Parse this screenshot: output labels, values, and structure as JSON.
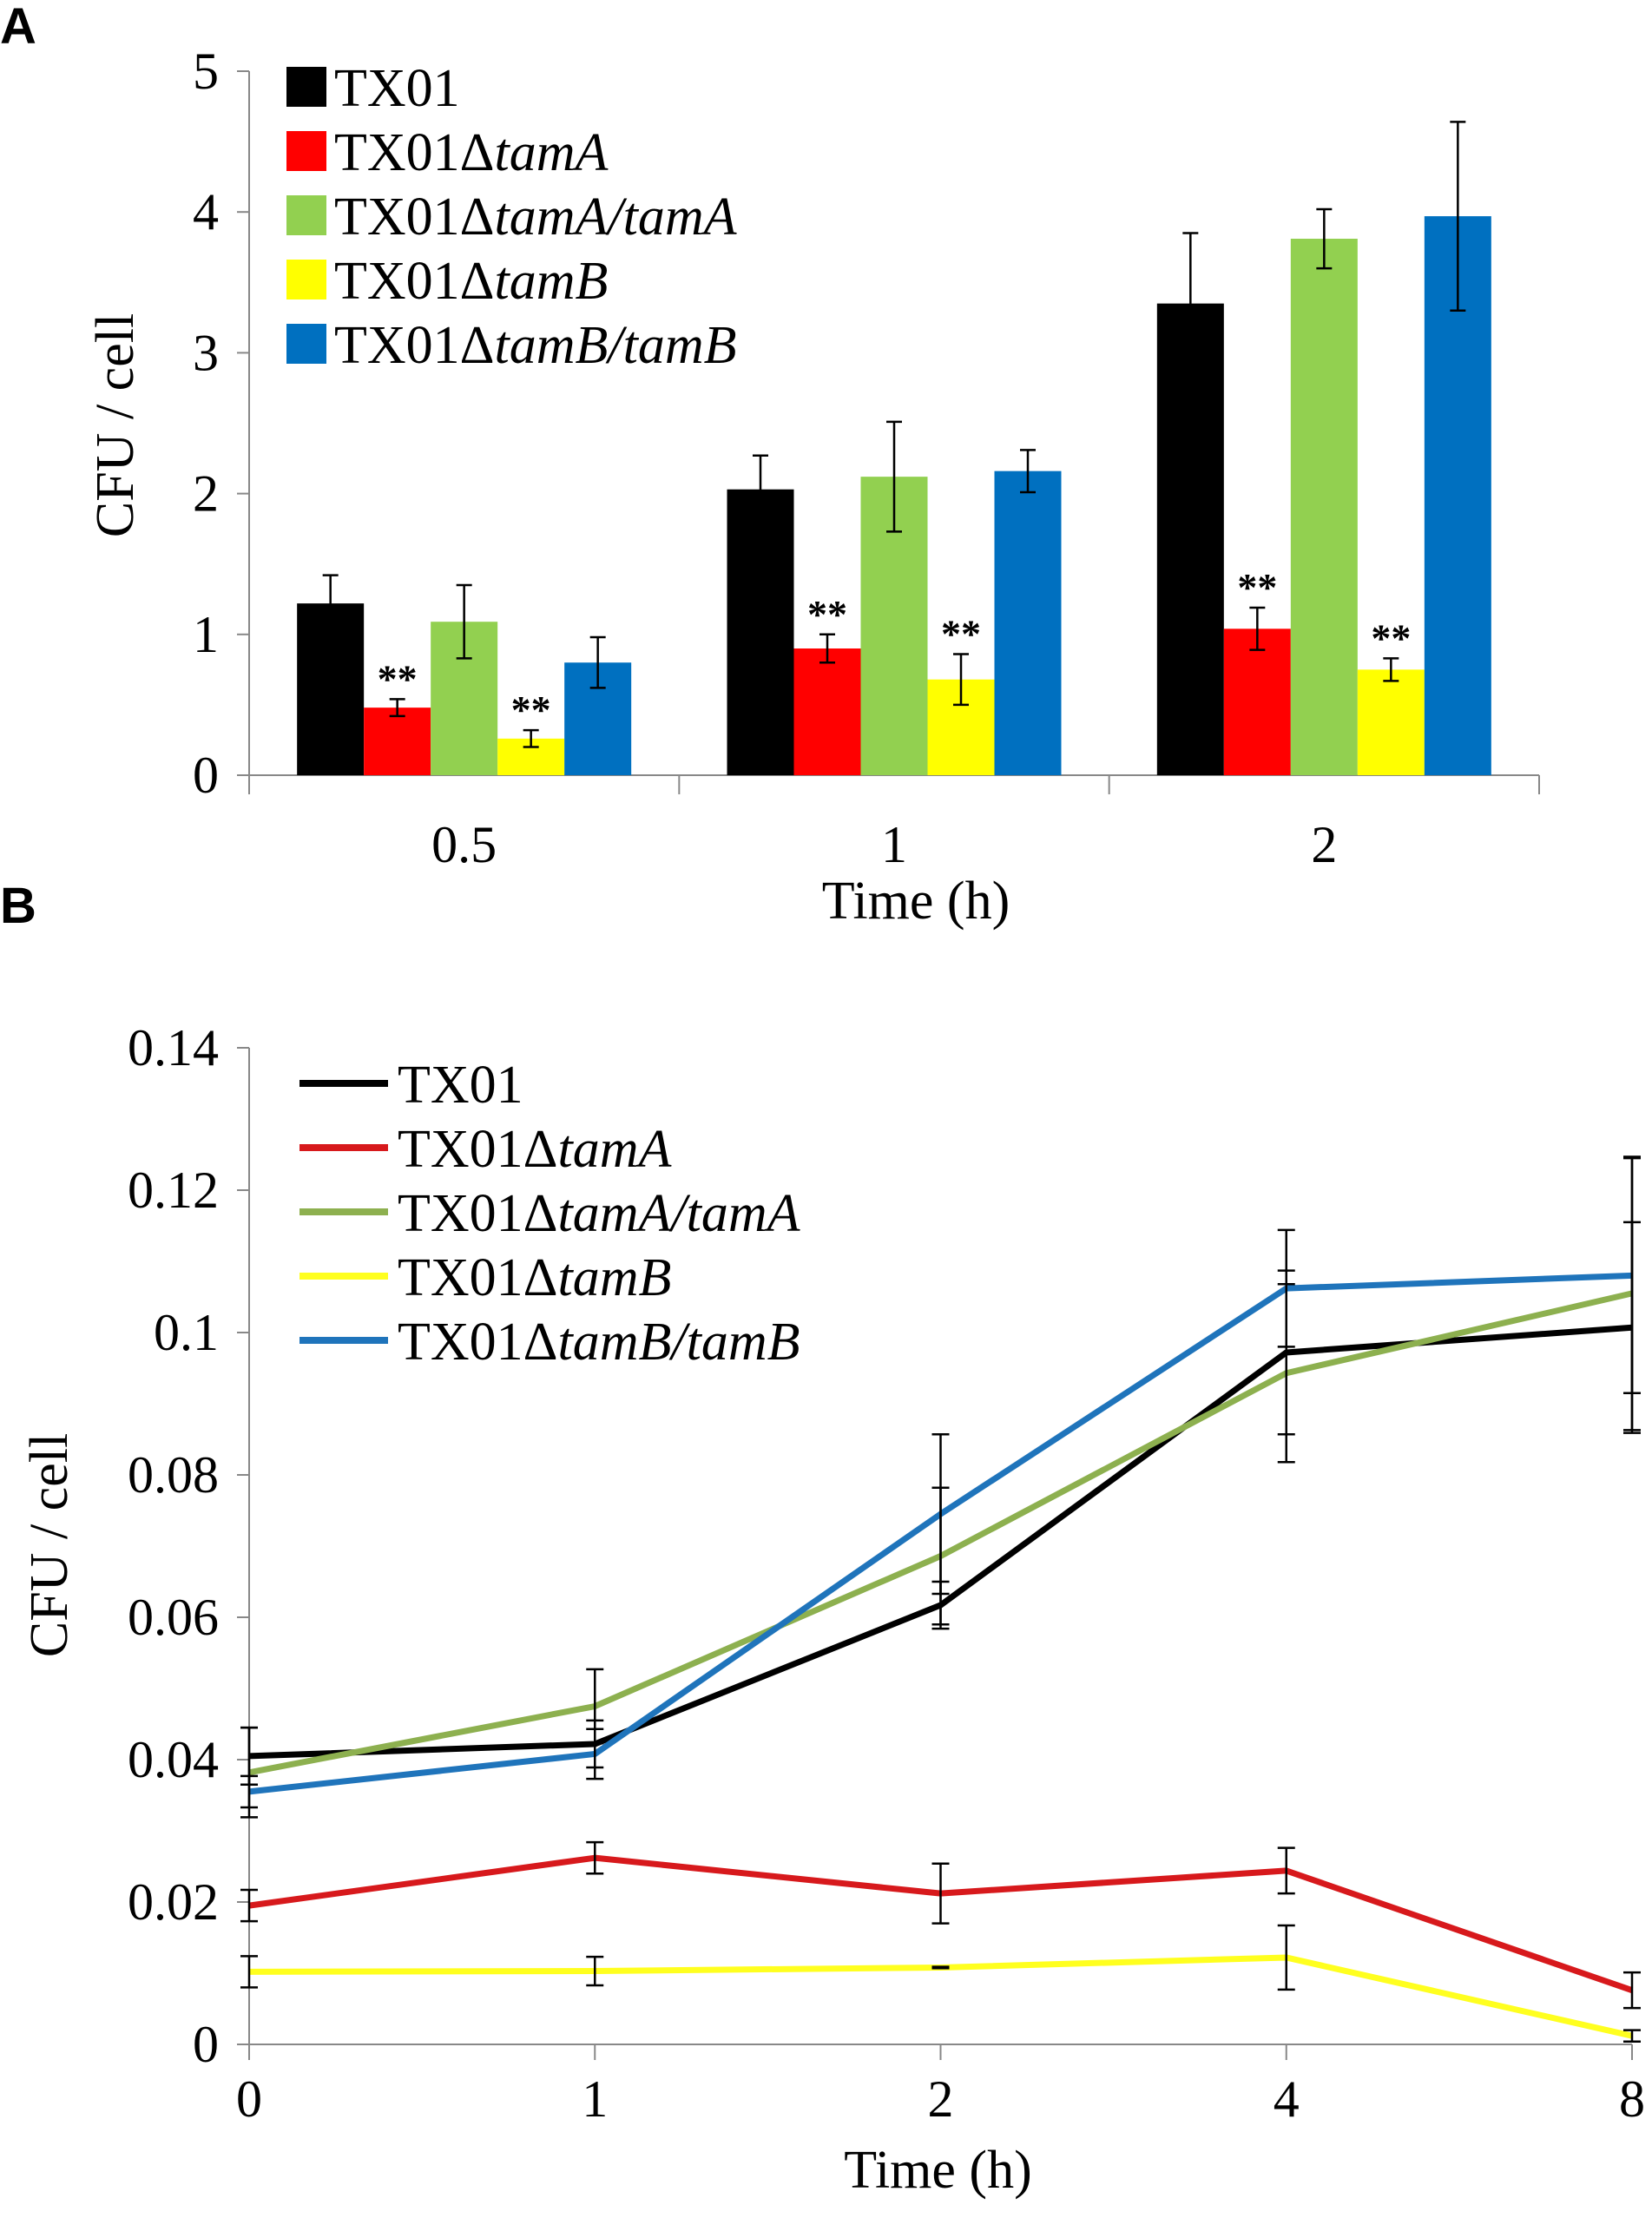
{
  "panels": {
    "a_letter": "A",
    "b_letter": "B"
  },
  "chart_data": [
    {
      "type": "bar",
      "title": "",
      "xlabel": "Time (h)",
      "ylabel": "CFU / cell",
      "categories": [
        "0.5",
        "1",
        "2"
      ],
      "ylim": [
        0,
        5
      ],
      "yticks": [
        "0",
        "1",
        "2",
        "3",
        "4",
        "5"
      ],
      "grid": false,
      "legend_position": "top-left",
      "series": [
        {
          "base": "TX01",
          "suffix": "",
          "color": "#000000",
          "values": [
            1.22,
            2.03,
            3.35
          ],
          "errors": [
            0.2,
            0.24,
            0.5
          ],
          "sig": [
            "",
            "",
            ""
          ]
        },
        {
          "base": "TX01Δ",
          "suffix": "tamA",
          "color": "#ff0000",
          "values": [
            0.48,
            0.9,
            1.04
          ],
          "errors": [
            0.06,
            0.1,
            0.15
          ],
          "sig": [
            "**",
            "**",
            "**"
          ]
        },
        {
          "base": "TX01Δ",
          "suffix": "tamA/tamA",
          "color": "#92d050",
          "values": [
            1.09,
            2.12,
            3.81
          ],
          "errors": [
            0.26,
            0.39,
            0.21
          ],
          "sig": [
            "",
            "",
            ""
          ]
        },
        {
          "base": "TX01Δ",
          "suffix": "tamB",
          "color": "#ffff00",
          "values": [
            0.26,
            0.68,
            0.75
          ],
          "errors": [
            0.06,
            0.18,
            0.08
          ],
          "sig": [
            "**",
            "**",
            "**"
          ]
        },
        {
          "base": "TX01Δ",
          "suffix": "tamB/tamB",
          "color": "#0070c0",
          "values": [
            0.8,
            2.16,
            3.97
          ],
          "errors": [
            0.18,
            0.15,
            0.67
          ],
          "sig": [
            "",
            "",
            ""
          ]
        }
      ]
    },
    {
      "type": "line",
      "title": "",
      "xlabel": "Time (h)",
      "ylabel": "CFU / cell",
      "x": [
        "0",
        "1",
        "2",
        "4",
        "8"
      ],
      "ylim": [
        0,
        0.14
      ],
      "yticks": [
        "0",
        "0.02",
        "0.04",
        "0.06",
        "0.08",
        "0.1",
        "0.12",
        "0.14"
      ],
      "grid": false,
      "legend_position": "top-left",
      "series": [
        {
          "base": "TX01",
          "suffix": "",
          "color": "#000000",
          "values": [
            0.0405,
            0.0422,
            0.0617,
            0.0972,
            0.1007
          ],
          "errors": [
            0.004,
            0.0033,
            0.0033,
            0.0115,
            0.0148
          ]
        },
        {
          "base": "TX01Δ",
          "suffix": "tamA",
          "color": "#d7191c",
          "values": [
            0.0195,
            0.0262,
            0.0212,
            0.0244,
            0.0076
          ],
          "errors": [
            0.0022,
            0.0022,
            0.0042,
            0.0032,
            0.0025
          ]
        },
        {
          "base": "TX01Δ",
          "suffix": "tamA/tamA",
          "color": "#8db04f",
          "values": [
            0.0382,
            0.0475,
            0.0686,
            0.0943,
            0.1055
          ],
          "errors": [
            0.0063,
            0.0052,
            0.0096,
            0.0125,
            0.0192
          ]
        },
        {
          "base": "TX01Δ",
          "suffix": "tamB",
          "color": "#ffff1f",
          "values": [
            0.0102,
            0.0103,
            0.0108,
            0.0122,
            0.0012
          ],
          "errors": [
            0.0022,
            0.002,
            0.0001,
            0.0045,
            0.0008
          ]
        },
        {
          "base": "TX01Δ",
          "suffix": "tamB/tamB",
          "color": "#1f74bb",
          "values": [
            0.0355,
            0.0408,
            0.0745,
            0.1062,
            0.108
          ],
          "errors": [
            0.0022,
            0.0035,
            0.0112,
            0.0082,
            0.0165
          ]
        }
      ]
    }
  ]
}
